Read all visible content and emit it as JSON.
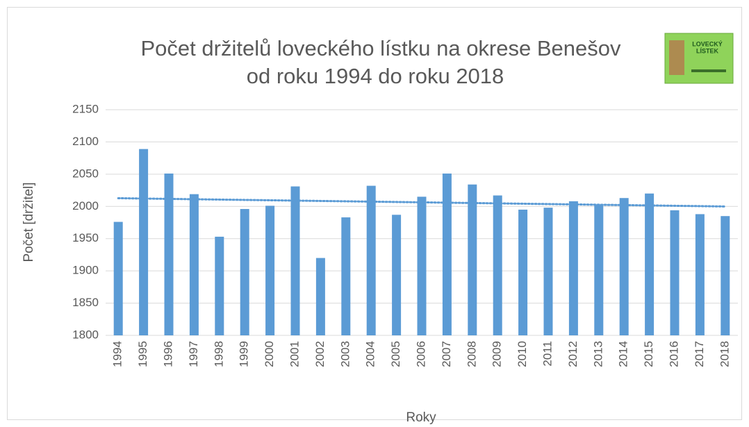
{
  "chart_data": {
    "type": "bar",
    "title": [
      "Počet držitelů loveckého lístku na okrese Benešov",
      "od roku 1994 do roku 2018"
    ],
    "x_label": "Roky",
    "y_label": "Počet [držitel]",
    "image_text": [
      "LOVECKÝ",
      "LÍSTEK"
    ],
    "categories": [
      "1994",
      "1995",
      "1996",
      "1997",
      "1998",
      "1999",
      "2000",
      "2001",
      "2002",
      "2003",
      "2004",
      "2005",
      "2006",
      "2007",
      "2008",
      "2009",
      "2010",
      "2011",
      "2012",
      "2013",
      "2014",
      "2015",
      "2016",
      "2017",
      "2018"
    ],
    "values": [
      1976,
      2089,
      2051,
      2019,
      1953,
      1996,
      2001,
      2031,
      1920,
      1983,
      2032,
      1987,
      2015,
      2051,
      2034,
      2017,
      1995,
      1998,
      2008,
      2002,
      2013,
      2020,
      1994,
      1988,
      1985
    ],
    "color": "#5b9bd5",
    "ylim": [
      1800,
      2150
    ],
    "yticks": [
      1800,
      1850,
      1900,
      1950,
      2000,
      2050,
      2100,
      2150
    ],
    "grid": true,
    "trendline": "linear"
  }
}
